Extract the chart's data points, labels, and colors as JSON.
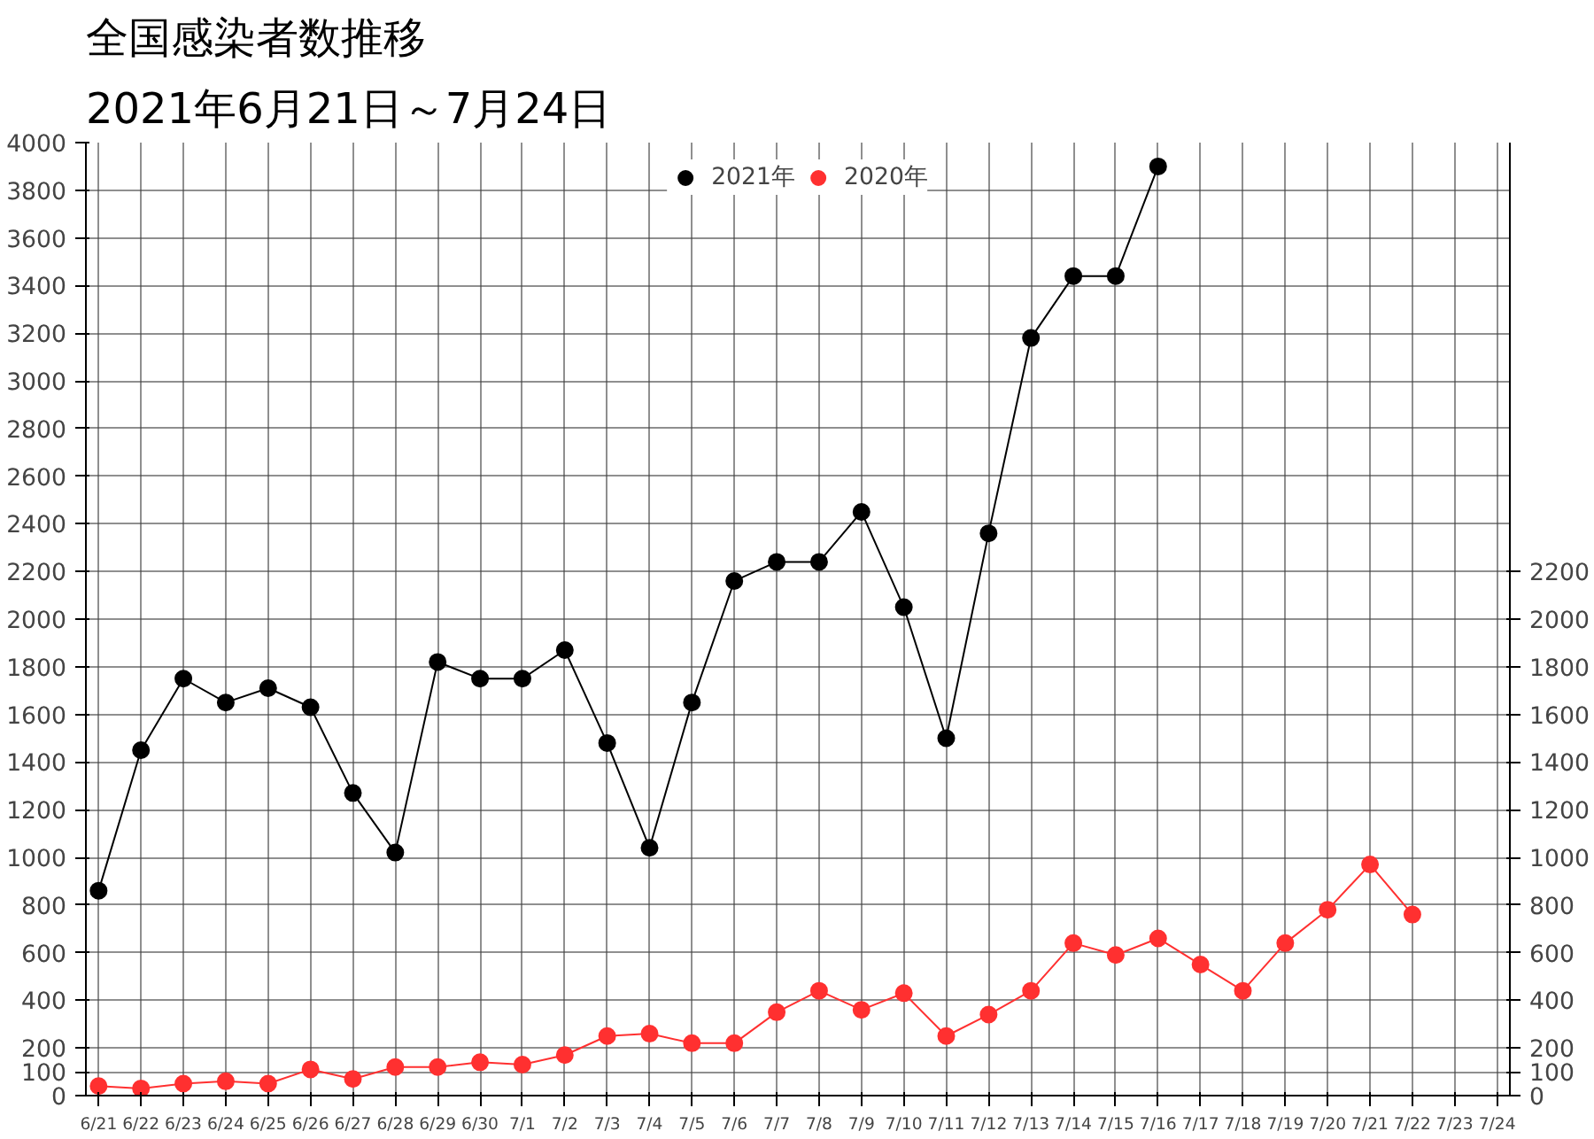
{
  "chart_data": {
    "type": "line",
    "title": "全国感染者数推移",
    "subtitle": "2021年6月21日～7月24日",
    "categories": [
      "6/21",
      "6/22",
      "6/23",
      "6/24",
      "6/25",
      "6/26",
      "6/27",
      "6/28",
      "6/29",
      "6/30",
      "7/1",
      "7/2",
      "7/3",
      "7/4",
      "7/5",
      "7/6",
      "7/7",
      "7/8",
      "7/9",
      "7/10",
      "7/11",
      "7/12",
      "7/13",
      "7/14",
      "7/15",
      "7/16",
      "7/17",
      "7/18",
      "7/19",
      "7/20",
      "7/21",
      "7/22",
      "7/23",
      "7/24"
    ],
    "series": [
      {
        "name": "2021年",
        "color": "#000000",
        "values": [
          860,
          1450,
          1750,
          1650,
          1710,
          1630,
          1270,
          1020,
          1820,
          1750,
          1750,
          1870,
          1480,
          1040,
          1650,
          2160,
          2240,
          2240,
          2450,
          2050,
          1500,
          2360,
          3180,
          3440,
          3440,
          3900,
          null,
          null,
          null,
          null,
          null,
          null,
          null,
          null
        ]
      },
      {
        "name": "2020年",
        "color": "#ff3030",
        "values": [
          40,
          30,
          50,
          60,
          50,
          110,
          70,
          120,
          120,
          140,
          130,
          170,
          250,
          260,
          220,
          220,
          350,
          440,
          360,
          430,
          250,
          340,
          440,
          640,
          590,
          660,
          550,
          440,
          640,
          780,
          970,
          760,
          null,
          null
        ]
      }
    ],
    "ylim": [
      0,
      4000
    ],
    "yticks": [
      0,
      100,
      200,
      400,
      600,
      800,
      1000,
      1200,
      1400,
      1600,
      1800,
      2000,
      2200,
      2400,
      2600,
      2800,
      3000,
      3200,
      3400,
      3600,
      3800,
      4000
    ],
    "y2lim": [
      0,
      4000
    ],
    "y2ticks": [
      0,
      100,
      200,
      400,
      600,
      800,
      1000,
      1200,
      1400,
      1600,
      1800,
      2000,
      2200
    ],
    "grid": true,
    "legend": "top",
    "marker": "circle",
    "line_style": "solid"
  }
}
